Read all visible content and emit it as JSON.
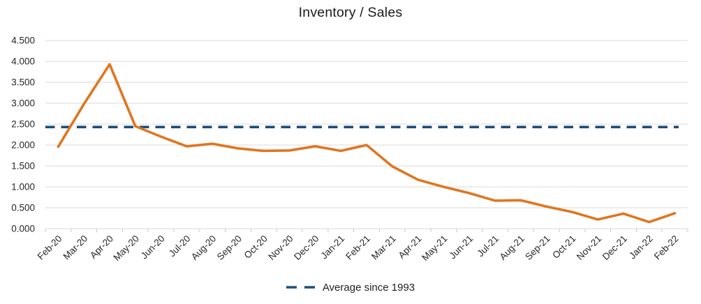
{
  "chart_data": {
    "type": "line",
    "title": "Inventory / Sales",
    "categories": [
      "Feb-20",
      "Mar-20",
      "Apr-20",
      "May-20",
      "Jun-20",
      "Jul-20",
      "Aug-20",
      "Sep-20",
      "Oct-20",
      "Nov-20",
      "Dec-20",
      "Jan-21",
      "Feb-21",
      "Mar-21",
      "Apr-21",
      "May-21",
      "Jun-21",
      "Jul-21",
      "Aug-21",
      "Sep-21",
      "Oct-21",
      "Nov-21",
      "Dec-21",
      "Jan-22",
      "Feb-22"
    ],
    "series": [
      {
        "name": "Inventory / Sales",
        "style": "solid",
        "color": "#E0761F",
        "values": [
          1.96,
          2.98,
          3.93,
          2.45,
          2.2,
          1.97,
          2.03,
          1.92,
          1.86,
          1.87,
          1.97,
          1.86,
          2.0,
          1.49,
          1.17,
          1.0,
          0.85,
          0.67,
          0.68,
          0.53,
          0.4,
          0.22,
          0.36,
          0.16,
          0.37
        ]
      },
      {
        "name": "Average since 1993",
        "style": "dashed-horizontal",
        "color": "#1F4E79",
        "value": 2.43
      }
    ],
    "ylim": [
      0,
      4.5
    ],
    "ytick_step": 0.5,
    "ytick_labels": [
      "0.000",
      "0.500",
      "1.000",
      "1.500",
      "2.000",
      "2.500",
      "3.000",
      "3.500",
      "4.000",
      "4.500"
    ],
    "xlabel": "",
    "ylabel": "",
    "grid": true,
    "legend_position": "bottom",
    "legend_label": "Average since 1993"
  },
  "colors": {
    "series_line": "#E0761F",
    "average_line": "#1F4E79",
    "gridline": "#D9D9D9",
    "axis": "#C9C9C9",
    "text": "#262626",
    "title_text": "#1a1a1a",
    "background": "#ffffff"
  }
}
